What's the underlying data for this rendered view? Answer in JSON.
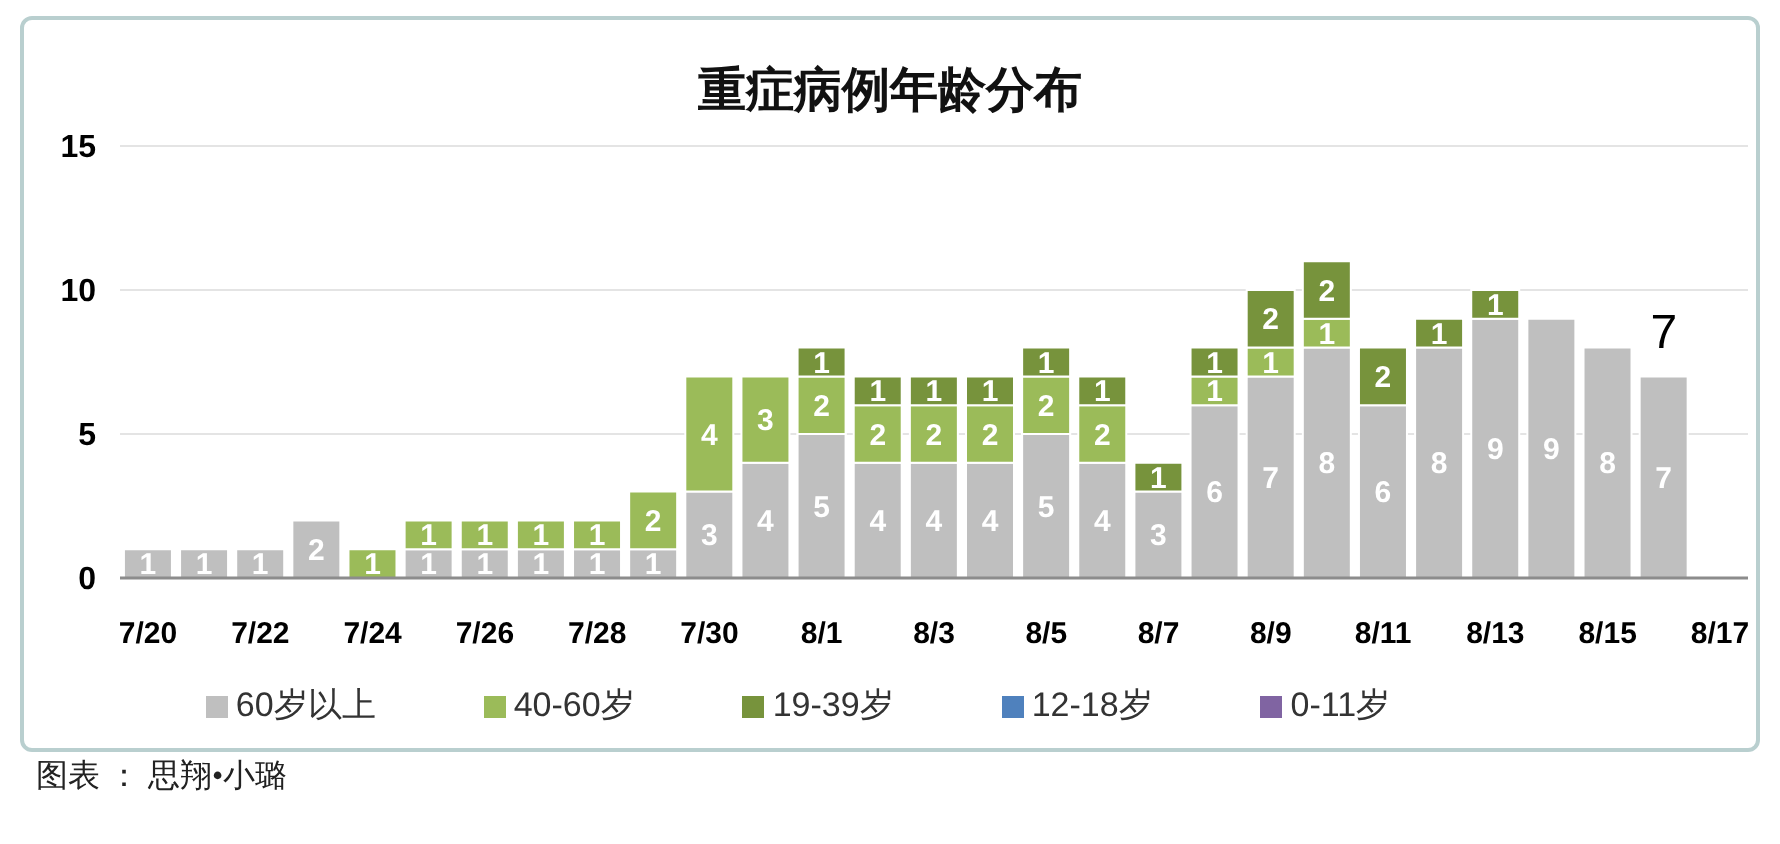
{
  "chart_data": {
    "type": "bar",
    "title": "重症病例年龄分布",
    "categories": [
      "7/20",
      null,
      "7/22",
      null,
      "7/24",
      null,
      "7/26",
      null,
      "7/28",
      null,
      "7/30",
      null,
      "8/1",
      null,
      "8/3",
      null,
      "8/5",
      null,
      "8/7",
      null,
      "8/9",
      null,
      "8/11",
      null,
      "8/13",
      null,
      "8/15",
      null,
      "8/17"
    ],
    "stacked": true,
    "series": [
      {
        "name": "60岁以上",
        "color": "#bfbfbf",
        "values": [
          1,
          1,
          1,
          2,
          null,
          1,
          1,
          1,
          1,
          1,
          3,
          4,
          5,
          4,
          4,
          4,
          5,
          4,
          3,
          6,
          7,
          8,
          6,
          8,
          9,
          9,
          8,
          7,
          null
        ]
      },
      {
        "name": "40-60岁",
        "color": "#9bbb59",
        "values": [
          null,
          null,
          null,
          null,
          1,
          1,
          1,
          1,
          1,
          2,
          4,
          3,
          2,
          2,
          2,
          2,
          2,
          2,
          null,
          1,
          1,
          1,
          null,
          null,
          null,
          null,
          null,
          null,
          null
        ]
      },
      {
        "name": "19-39岁",
        "color": "#77933c",
        "values": [
          null,
          null,
          null,
          null,
          null,
          null,
          null,
          null,
          null,
          null,
          null,
          null,
          1,
          1,
          1,
          1,
          1,
          1,
          1,
          1,
          2,
          2,
          2,
          1,
          1,
          null,
          null,
          null,
          null
        ]
      },
      {
        "name": "12-18岁",
        "color": "#4f81bd",
        "values": [
          null,
          null,
          null,
          null,
          null,
          null,
          null,
          null,
          null,
          null,
          null,
          null,
          null,
          null,
          null,
          null,
          null,
          null,
          null,
          null,
          null,
          null,
          null,
          null,
          null,
          null,
          null,
          null,
          null
        ]
      },
      {
        "name": "0-11岁",
        "color": "#8064a2",
        "values": [
          null,
          null,
          null,
          null,
          null,
          null,
          null,
          null,
          null,
          null,
          null,
          null,
          null,
          null,
          null,
          null,
          null,
          null,
          null,
          null,
          null,
          null,
          null,
          null,
          null,
          null,
          null,
          null,
          null
        ]
      }
    ],
    "ylim": [
      0,
      15
    ],
    "yticks": [
      0,
      5,
      10,
      15
    ],
    "grid": "y",
    "legend": "bottom",
    "data_labels": true,
    "totals": [
      null,
      null,
      null,
      null,
      null,
      null,
      null,
      null,
      null,
      null,
      null,
      null,
      null,
      null,
      null,
      null,
      null,
      null,
      null,
      null,
      null,
      null,
      null,
      null,
      null,
      null,
      null,
      "7",
      null
    ],
    "annotations": [
      "图表 ： 思翔•小璐"
    ]
  }
}
